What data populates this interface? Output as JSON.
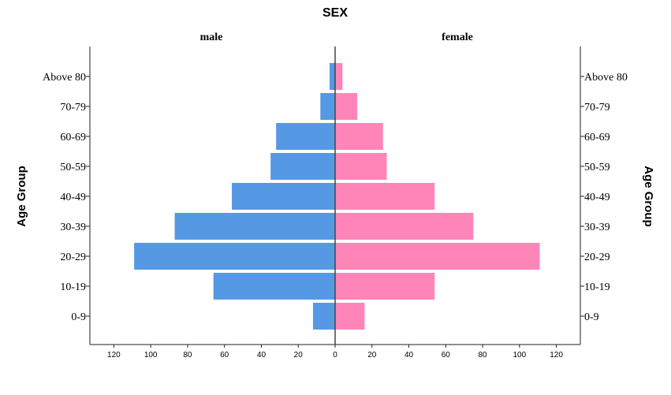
{
  "chart_data": {
    "type": "bar",
    "title": "SEX",
    "panels": [
      "male",
      "female"
    ],
    "ylabel": "Age Group",
    "categories": [
      "Above 80",
      "70-79",
      "60-69",
      "50-59",
      "40-49",
      "30-39",
      "20-29",
      "10-19",
      "0-9"
    ],
    "series": [
      {
        "name": "male",
        "values": [
          3,
          8,
          32,
          35,
          56,
          87,
          109,
          66,
          12
        ]
      },
      {
        "name": "female",
        "values": [
          4,
          12,
          26,
          28,
          54,
          75,
          111,
          54,
          16
        ]
      }
    ],
    "xlim": [
      -133,
      133
    ],
    "xticks": [
      "120",
      "100",
      "80",
      "60",
      "40",
      "20",
      "0",
      "20",
      "40",
      "60",
      "80",
      "100",
      "120"
    ],
    "colors": {
      "male": "#5599e5",
      "female": "#ff85b8"
    },
    "grid": false
  }
}
